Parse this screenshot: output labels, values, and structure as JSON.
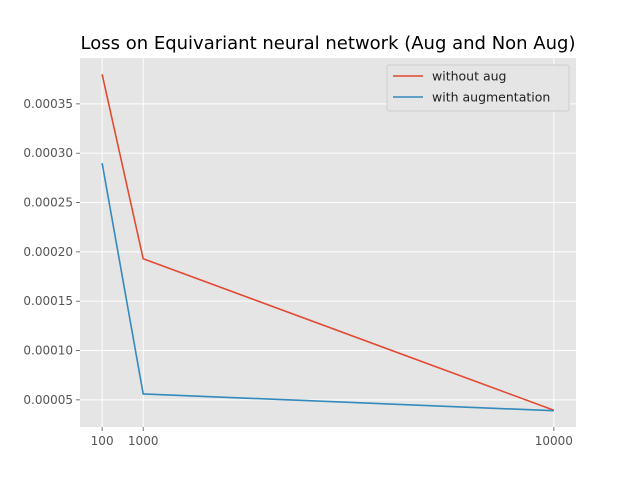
{
  "chart_data": {
    "type": "line",
    "title": "Loss on Equivariant neural network (Aug and Non Aug)",
    "xlabel": "",
    "ylabel": "",
    "x": [
      100,
      1000,
      10000
    ],
    "xticks": [
      100,
      1000,
      10000
    ],
    "xtick_labels": [
      "100",
      "1000",
      "10000"
    ],
    "xlim": [
      -385,
      10485
    ],
    "ylim": [
      2.25e-05,
      0.0003965
    ],
    "yticks": [
      5e-05,
      0.0001,
      0.00015,
      0.0002,
      0.00025,
      0.0003,
      0.00035
    ],
    "ytick_labels": [
      "0.00005",
      "0.00010",
      "0.00015",
      "0.00020",
      "0.00025",
      "0.00030",
      "0.00035"
    ],
    "grid": true,
    "legend_position": "top-right",
    "series": [
      {
        "name": "without aug",
        "color": "#E24A33",
        "values": [
          0.00038,
          0.000193,
          3.95e-05
        ]
      },
      {
        "name": "with augmentation",
        "color": "#348ABD",
        "values": [
          0.00029,
          5.6e-05,
          3.9e-05
        ]
      }
    ]
  }
}
